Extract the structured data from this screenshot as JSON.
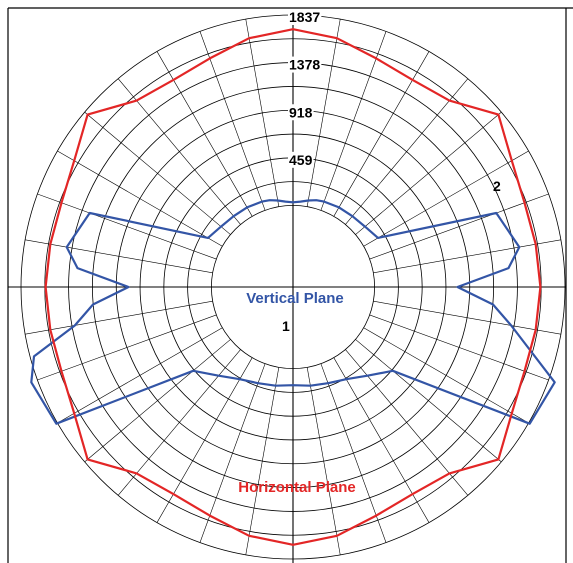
{
  "chart_data": {
    "type": "polar-line",
    "title": "",
    "radial_axis": {
      "max": 1837,
      "ticks": [
        459,
        918,
        1378,
        1837
      ],
      "tick_labels": [
        "459",
        "918",
        "1378",
        "1837"
      ],
      "hole_fraction": 0.3
    },
    "angular_grid_step_deg": 10,
    "series": [
      {
        "name": "Vertical Plane",
        "curve_number": "1",
        "color": "#3355a6",
        "angles_deg": [
          0,
          5,
          10,
          15,
          20,
          30,
          40,
          50,
          60,
          70,
          80,
          85,
          90,
          95,
          100,
          110,
          120,
          130,
          140,
          150,
          160,
          170,
          180,
          190,
          200,
          210,
          220,
          230,
          240,
          250,
          255,
          260,
          265,
          270,
          275,
          280,
          290,
          300,
          310,
          320,
          330,
          340,
          345,
          350,
          355
        ],
        "values": [
          30,
          40,
          60,
          80,
          90,
          100,
          105,
          120,
          160,
          1300,
          1430,
          1300,
          800,
          1150,
          1350,
          1900,
          1850,
          470,
          330,
          240,
          200,
          180,
          160,
          180,
          200,
          240,
          330,
          470,
          1850,
          1900,
          1800,
          1350,
          1150,
          800,
          1300,
          1430,
          1300,
          160,
          120,
          105,
          100,
          90,
          80,
          60,
          40
        ]
      },
      {
        "name": "Horizontal Plane",
        "curve_number": "2",
        "color": "#e32626",
        "angles_deg": [
          0,
          10,
          20,
          30,
          40,
          50,
          60,
          70,
          80,
          90,
          100,
          110,
          120,
          130,
          140,
          150,
          160,
          170,
          180,
          190,
          200,
          210,
          220,
          230,
          240,
          250,
          260,
          270,
          280,
          290,
          300,
          310,
          320,
          330,
          340,
          350
        ],
        "values": [
          1700,
          1650,
          1560,
          1520,
          1560,
          1800,
          1650,
          1590,
          1590,
          1600,
          1590,
          1590,
          1650,
          1800,
          1560,
          1520,
          1560,
          1650,
          1700,
          1650,
          1560,
          1520,
          1560,
          1800,
          1650,
          1590,
          1590,
          1600,
          1590,
          1590,
          1650,
          1800,
          1560,
          1520,
          1560,
          1650
        ]
      }
    ]
  }
}
